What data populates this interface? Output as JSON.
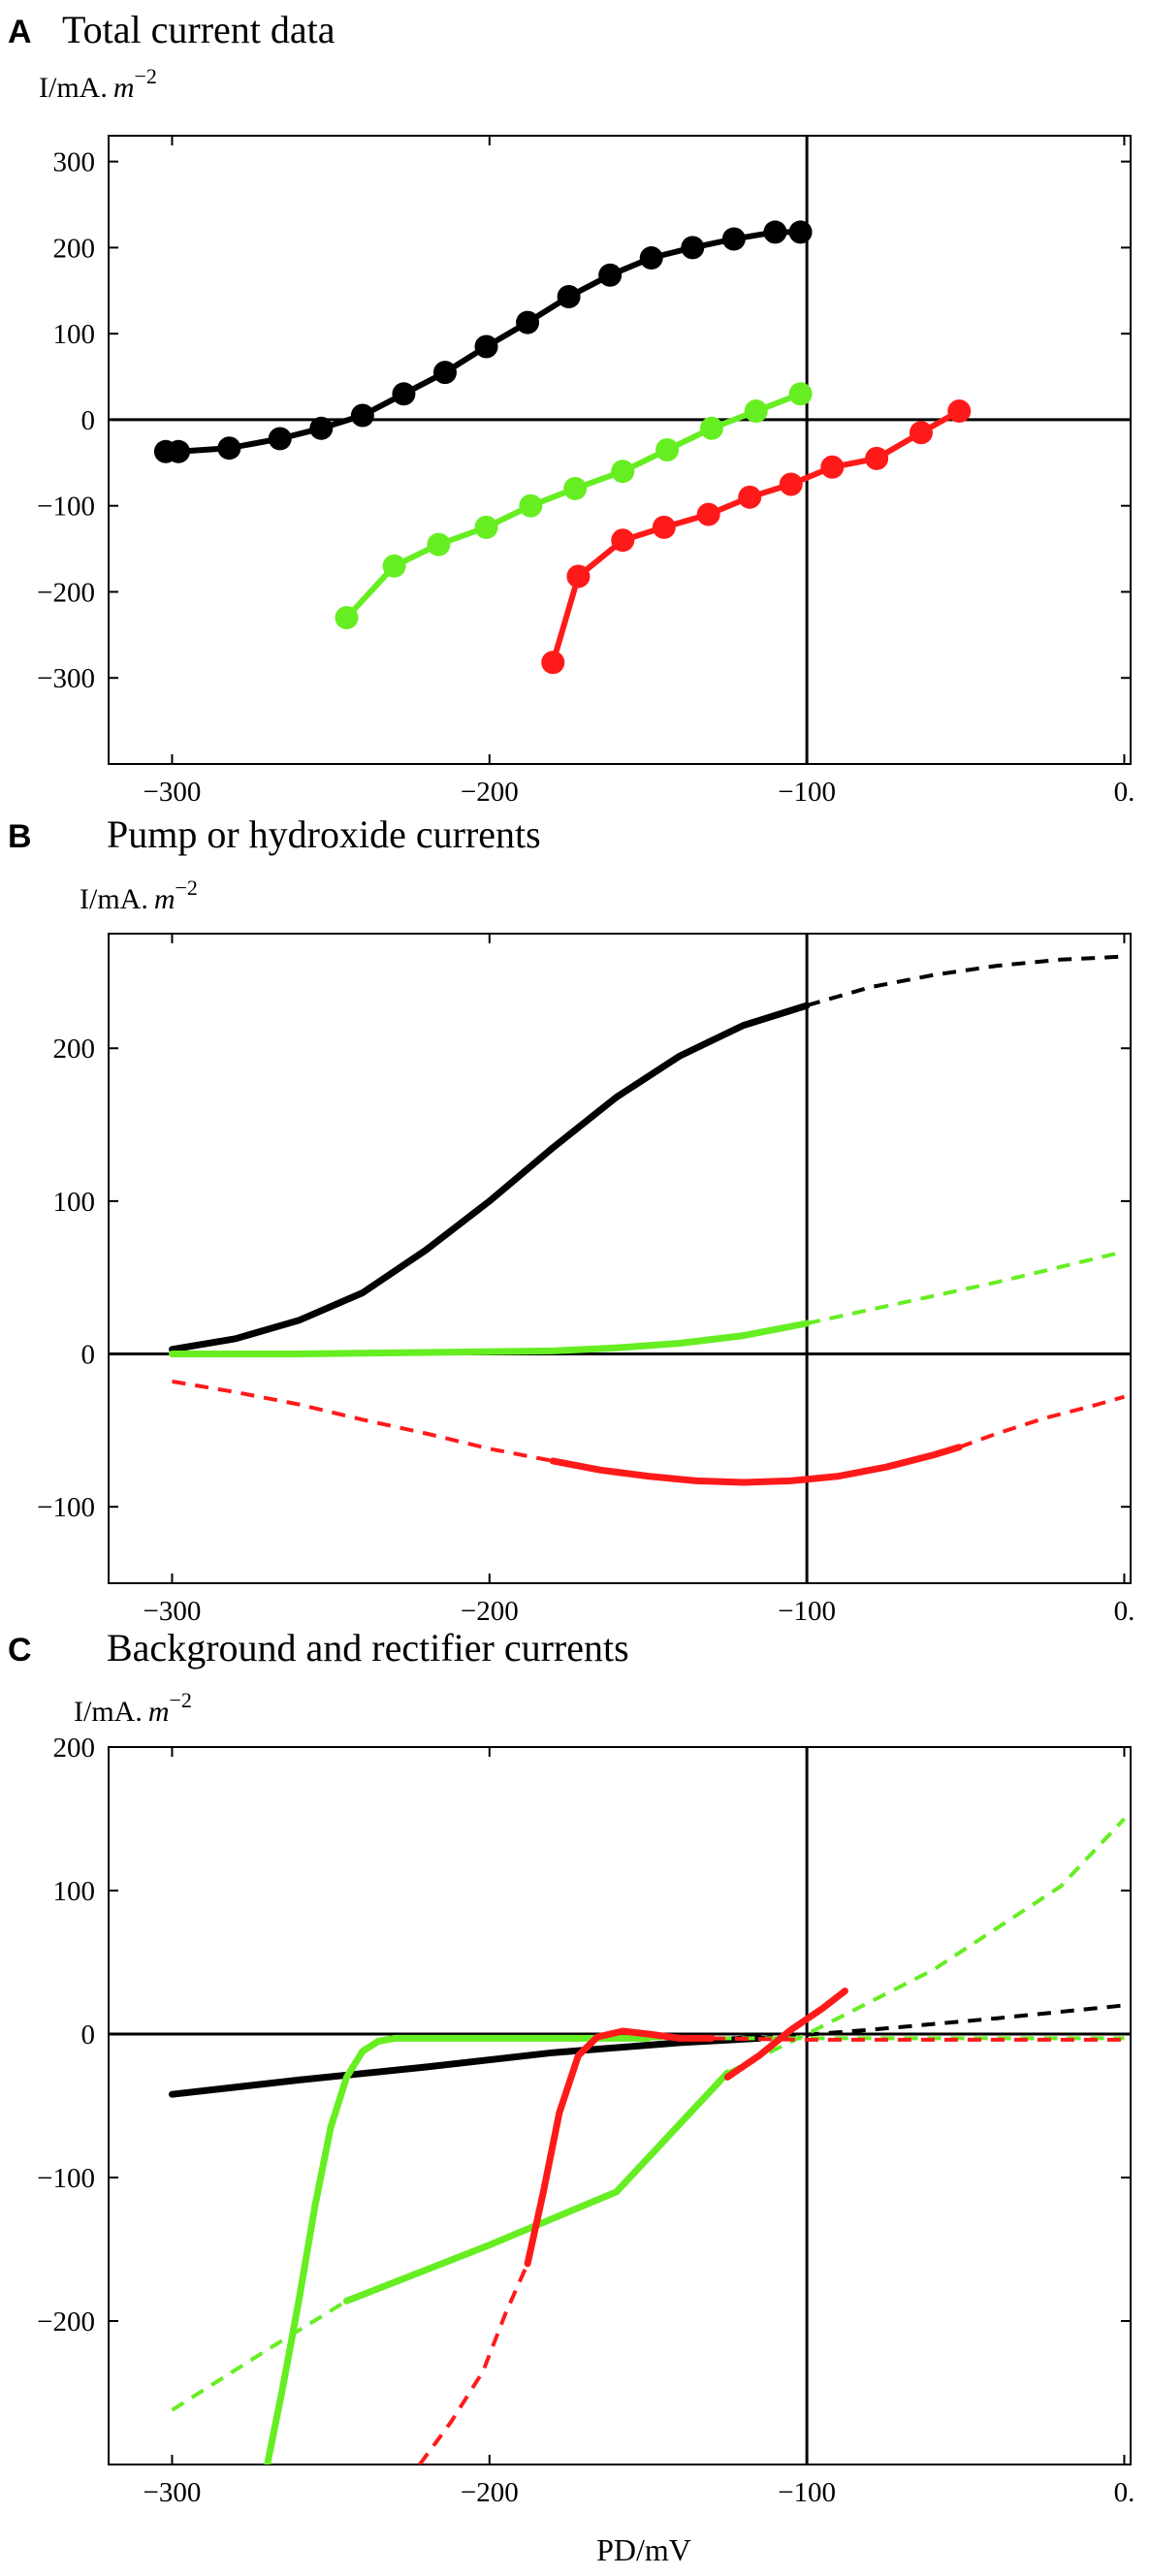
{
  "figure": {
    "xlabel": "PD/mV"
  },
  "chart_data": [
    {
      "id": "A",
      "type": "line",
      "panel_letter": "A",
      "title": "Total current data",
      "ylabel_unit": "I/mA.",
      "ylabel_exp_base": "m",
      "ylabel_exp": "−2",
      "xlim": [
        -320,
        2
      ],
      "ylim": [
        -400,
        330
      ],
      "xticks": [
        -300,
        -200,
        -100,
        0
      ],
      "xtick_labels": [
        "−300",
        "−200",
        "−100",
        "0."
      ],
      "yticks": [
        -300,
        -200,
        -100,
        0,
        100,
        200,
        300
      ],
      "ytick_labels": [
        "−300",
        "−200",
        "−100",
        "0",
        "100",
        "200",
        "300"
      ],
      "series": [
        {
          "color": "#000000",
          "markers": true,
          "x": [
            -302,
            -298,
            -282,
            -266,
            -253,
            -240,
            -227,
            -214,
            -201,
            -188,
            -175,
            -162,
            -149,
            -136,
            -123,
            -110,
            -102
          ],
          "y": [
            -37,
            -37,
            -33,
            -22,
            -10,
            5,
            30,
            55,
            85,
            113,
            143,
            168,
            188,
            200,
            210,
            218,
            218
          ]
        },
        {
          "color": "#66ee22",
          "markers": true,
          "x": [
            -245,
            -230,
            -216,
            -201,
            -187,
            -173,
            -158,
            -144,
            -130,
            -116,
            -102
          ],
          "y": [
            -230,
            -170,
            -145,
            -125,
            -100,
            -80,
            -60,
            -35,
            -10,
            10,
            30
          ]
        },
        {
          "color": "#ff1a1a",
          "markers": true,
          "x": [
            -180,
            -172,
            -158,
            -145,
            -131,
            -118,
            -105,
            -92,
            -78,
            -64,
            -52
          ],
          "y": [
            -282,
            -182,
            -140,
            -125,
            -110,
            -90,
            -75,
            -55,
            -45,
            -15,
            10
          ]
        }
      ]
    },
    {
      "id": "B",
      "type": "line",
      "panel_letter": "B",
      "title": "Pump or hydroxide currents",
      "ylabel_unit": "I/mA.",
      "ylabel_exp_base": "m",
      "ylabel_exp": "−2",
      "xlim": [
        -320,
        2
      ],
      "ylim": [
        -150,
        275
      ],
      "xticks": [
        -300,
        -200,
        -100,
        0
      ],
      "xtick_labels": [
        "−300",
        "−200",
        "−100",
        "0."
      ],
      "yticks": [
        -100,
        0,
        100,
        200
      ],
      "ytick_labels": [
        "−100",
        "0",
        "100",
        "200"
      ],
      "series": [
        {
          "color": "#000000",
          "dashed": false,
          "x": [
            -300,
            -280,
            -260,
            -240,
            -220,
            -200,
            -180,
            -160,
            -140,
            -120,
            -100
          ],
          "y": [
            3,
            10,
            22,
            40,
            68,
            100,
            135,
            168,
            195,
            215,
            228
          ]
        },
        {
          "color": "#000000",
          "dashed": true,
          "x": [
            -100,
            -80,
            -60,
            -40,
            -20,
            0
          ],
          "y": [
            228,
            240,
            248,
            254,
            258,
            260
          ]
        },
        {
          "color": "#66ee22",
          "dashed": false,
          "x": [
            -300,
            -260,
            -220,
            -180,
            -160,
            -140,
            -120,
            -100
          ],
          "y": [
            0,
            0,
            1,
            2,
            4,
            7,
            12,
            20
          ]
        },
        {
          "color": "#66ee22",
          "dashed": true,
          "x": [
            -100,
            -80,
            -60,
            -40,
            -20,
            0
          ],
          "y": [
            20,
            29,
            38,
            47,
            57,
            67
          ]
        },
        {
          "color": "#ff1a1a",
          "dashed": true,
          "x": [
            -300,
            -280,
            -260,
            -240,
            -220,
            -200,
            -180
          ],
          "y": [
            -18,
            -25,
            -33,
            -43,
            -52,
            -62,
            -70
          ]
        },
        {
          "color": "#ff1a1a",
          "dashed": false,
          "x": [
            -180,
            -165,
            -150,
            -135,
            -120,
            -105,
            -90,
            -75,
            -60,
            -52
          ],
          "y": [
            -70,
            -76,
            -80,
            -83,
            -84,
            -83,
            -80,
            -74,
            -66,
            -61
          ]
        },
        {
          "color": "#ff1a1a",
          "dashed": true,
          "x": [
            -52,
            -40,
            -25,
            -10,
            0
          ],
          "y": [
            -61,
            -52,
            -42,
            -34,
            -28
          ]
        }
      ]
    },
    {
      "id": "C",
      "type": "line",
      "panel_letter": "C",
      "title": "Background and rectifier currents",
      "ylabel_unit": "I/mA.",
      "ylabel_exp_base": "m",
      "ylabel_exp": "−2",
      "xlim": [
        -320,
        2
      ],
      "ylim": [
        -300,
        200
      ],
      "xticks": [
        -300,
        -200,
        -100,
        0
      ],
      "xtick_labels": [
        "−300",
        "−200",
        "−100",
        "0."
      ],
      "yticks": [
        -200,
        -100,
        0,
        100,
        200
      ],
      "ytick_labels": [
        "−200",
        "−100",
        "0",
        "100",
        "200"
      ],
      "series": [
        {
          "color": "#000000",
          "dashed": false,
          "x": [
            -300,
            -260,
            -220,
            -180,
            -140,
            -115
          ],
          "y": [
            -42,
            -32,
            -23,
            -13,
            -6,
            -3
          ]
        },
        {
          "color": "#000000",
          "dashed": true,
          "x": [
            -115,
            -80,
            -40,
            0
          ],
          "y": [
            -3,
            3,
            11,
            20
          ]
        },
        {
          "color": "#66ee22",
          "dashed": true,
          "x": [
            -300,
            -270,
            -245
          ],
          "y": [
            -262,
            -220,
            -186
          ]
        },
        {
          "color": "#66ee22",
          "dashed": false,
          "x": [
            -245,
            -200,
            -160,
            -125
          ],
          "y": [
            -186,
            -147,
            -110,
            -27
          ]
        },
        {
          "color": "#66ee22",
          "dashed": true,
          "x": [
            -125,
            -100,
            -60,
            -20,
            0
          ],
          "y": [
            -27,
            0,
            45,
            103,
            150
          ]
        },
        {
          "color": "#66ee22",
          "dashed": false,
          "x": [
            -270,
            -265,
            -260,
            -255,
            -250,
            -245,
            -240,
            -235,
            -230,
            -220,
            -200,
            -170,
            -150
          ],
          "y": [
            -300,
            -245,
            -185,
            -120,
            -65,
            -30,
            -12,
            -5,
            -3,
            -3,
            -3,
            -3,
            -3
          ]
        },
        {
          "color": "#66ee22",
          "dashed": true,
          "x": [
            -150,
            -100,
            -50,
            0
          ],
          "y": [
            -3,
            -3,
            -3,
            -3
          ]
        },
        {
          "color": "#ff1a1a",
          "dashed": true,
          "x": [
            -222,
            -212,
            -202,
            -195,
            -188
          ],
          "y": [
            -300,
            -270,
            -235,
            -195,
            -160
          ]
        },
        {
          "color": "#ff1a1a",
          "dashed": false,
          "x": [
            -188,
            -183,
            -178,
            -172,
            -166,
            -158,
            -150,
            -140,
            -130
          ],
          "y": [
            -160,
            -110,
            -55,
            -15,
            -2,
            2,
            0,
            -3,
            -3
          ]
        },
        {
          "color": "#ff1a1a",
          "dashed": true,
          "x": [
            -130,
            -100,
            -60,
            -20,
            0
          ],
          "y": [
            -3,
            -4,
            -4,
            -4,
            -4
          ]
        },
        {
          "color": "#ff1a1a",
          "dashed": false,
          "x": [
            -125,
            -115,
            -105,
            -95,
            -88
          ],
          "y": [
            -30,
            -15,
            3,
            18,
            30
          ]
        }
      ]
    }
  ]
}
